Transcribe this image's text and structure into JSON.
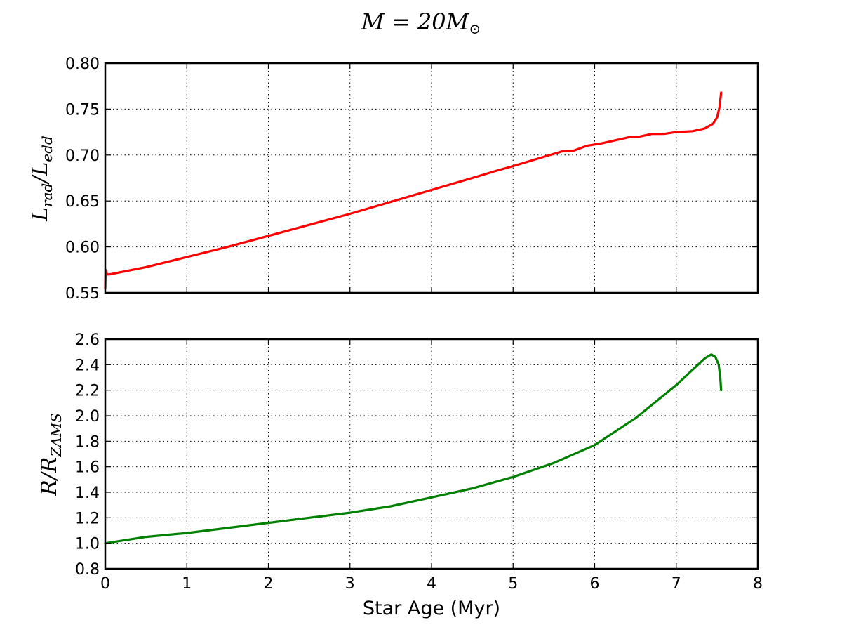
{
  "figure": {
    "title_base": "M = 20M",
    "title_sub": "⊙"
  },
  "chart_data": [
    {
      "type": "line",
      "ylabel_base": "L",
      "ylabel_sub1": "rad",
      "ylabel_mid": "/L",
      "ylabel_sub2": "edd",
      "xlim": [
        0,
        8
      ],
      "ylim": [
        0.55,
        0.8
      ],
      "grid": true,
      "x_ticks": [
        0,
        1,
        2,
        3,
        4,
        5,
        6,
        7,
        8
      ],
      "y_ticks": [
        0.55,
        0.6,
        0.65,
        0.7,
        0.75,
        0.8
      ],
      "y_tick_labels": [
        "0.55",
        "0.60",
        "0.65",
        "0.70",
        "0.75",
        "0.80"
      ],
      "series": [
        {
          "color": "#ff0000",
          "x": [
            0.0,
            0.005,
            0.02,
            0.05,
            0.5,
            1.0,
            1.5,
            2.0,
            2.5,
            3.0,
            3.5,
            4.0,
            4.5,
            4.8,
            5.0,
            5.3,
            5.6,
            5.75,
            5.9,
            6.1,
            6.3,
            6.45,
            6.55,
            6.7,
            6.85,
            7.0,
            7.2,
            7.35,
            7.45,
            7.5,
            7.53,
            7.55
          ],
          "y": [
            0.555,
            0.575,
            0.57,
            0.57,
            0.578,
            0.589,
            0.6,
            0.612,
            0.624,
            0.636,
            0.649,
            0.662,
            0.675,
            0.683,
            0.688,
            0.696,
            0.704,
            0.705,
            0.71,
            0.713,
            0.717,
            0.72,
            0.72,
            0.723,
            0.723,
            0.725,
            0.726,
            0.729,
            0.734,
            0.741,
            0.752,
            0.768
          ]
        }
      ]
    },
    {
      "type": "line",
      "ylabel_base": "R",
      "ylabel_mid": "/R",
      "ylabel_sub2": "ZAMS",
      "xlabel": "Star Age (Myr)",
      "xlim": [
        0,
        8
      ],
      "ylim": [
        0.8,
        2.6
      ],
      "grid": true,
      "x_ticks": [
        0,
        1,
        2,
        3,
        4,
        5,
        6,
        7,
        8
      ],
      "x_tick_labels": [
        "0",
        "1",
        "2",
        "3",
        "4",
        "5",
        "6",
        "7",
        "8"
      ],
      "y_ticks": [
        0.8,
        1.0,
        1.2,
        1.4,
        1.6,
        1.8,
        2.0,
        2.2,
        2.4,
        2.6
      ],
      "y_tick_labels": [
        "0.8",
        "1.0",
        "1.2",
        "1.4",
        "1.6",
        "1.8",
        "2.0",
        "2.2",
        "2.4",
        "2.6"
      ],
      "series": [
        {
          "color": "#008000",
          "x": [
            0.0,
            0.5,
            1.0,
            1.5,
            2.0,
            2.5,
            3.0,
            3.5,
            4.0,
            4.5,
            5.0,
            5.5,
            6.0,
            6.5,
            7.0,
            7.2,
            7.35,
            7.43,
            7.48,
            7.52,
            7.54,
            7.55
          ],
          "y": [
            1.0,
            1.05,
            1.08,
            1.12,
            1.16,
            1.2,
            1.24,
            1.29,
            1.36,
            1.43,
            1.52,
            1.63,
            1.77,
            1.98,
            2.24,
            2.36,
            2.45,
            2.48,
            2.46,
            2.4,
            2.3,
            2.2
          ]
        }
      ]
    }
  ]
}
